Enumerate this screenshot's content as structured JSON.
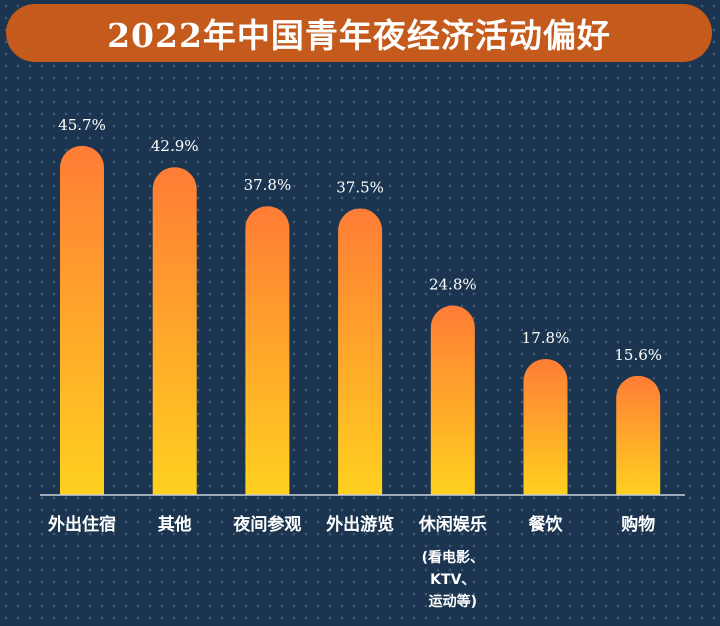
{
  "chart_data": {
    "type": "bar",
    "title": "2022年中国青年夜经济活动偏好",
    "categories": [
      "外出住宿",
      "其他",
      "夜间参观",
      "外出游览",
      "休闲娱乐",
      "餐饮",
      "购物"
    ],
    "category_notes": [
      "",
      "",
      "",
      "",
      "(看电影、\nKTV、\n运动等)",
      "",
      ""
    ],
    "values": [
      45.7,
      42.9,
      37.8,
      37.5,
      24.8,
      17.8,
      15.6
    ],
    "value_labels": [
      "45.7%",
      "42.9%",
      "37.8%",
      "37.5%",
      "24.8%",
      "17.8%",
      "15.6%"
    ],
    "unit": "%",
    "ylim": [
      0,
      50
    ],
    "xlabel": "",
    "ylabel": "",
    "grid": false,
    "legend": "none"
  },
  "colors": {
    "background": "#1b3550",
    "title_banner": "#c45a1c",
    "bar_top": "#ff7c36",
    "bar_bottom": "#ffd11f",
    "baseline": "#c9d2dc",
    "text": "#ffffff"
  }
}
